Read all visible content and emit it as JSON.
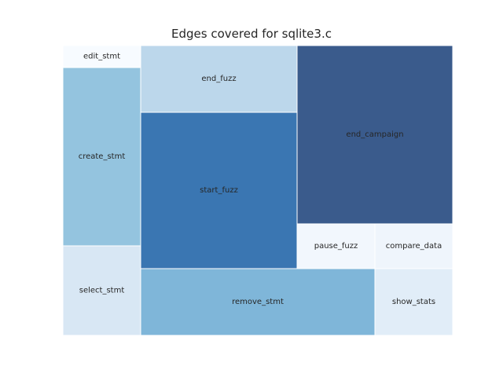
{
  "chart_data": {
    "type": "treemap",
    "title": "Edges covered for sqlite3.c",
    "tiles": [
      {
        "label": "edit_stmt",
        "color": "#f7fbff"
      },
      {
        "label": "create_stmt",
        "color": "#94c4df"
      },
      {
        "label": "select_stmt",
        "color": "#d8e7f4"
      },
      {
        "label": "end_fuzz",
        "color": "#bcd7eb"
      },
      {
        "label": "start_fuzz",
        "color": "#3a76b2"
      },
      {
        "label": "remove_stmt",
        "color": "#7fb6d9"
      },
      {
        "label": "end_campaign",
        "color": "#3a5b8c"
      },
      {
        "label": "pause_fuzz",
        "color": "#f2f7fd"
      },
      {
        "label": "compare_data",
        "color": "#eff5fc"
      },
      {
        "label": "show_stats",
        "color": "#e1edf8"
      }
    ]
  }
}
